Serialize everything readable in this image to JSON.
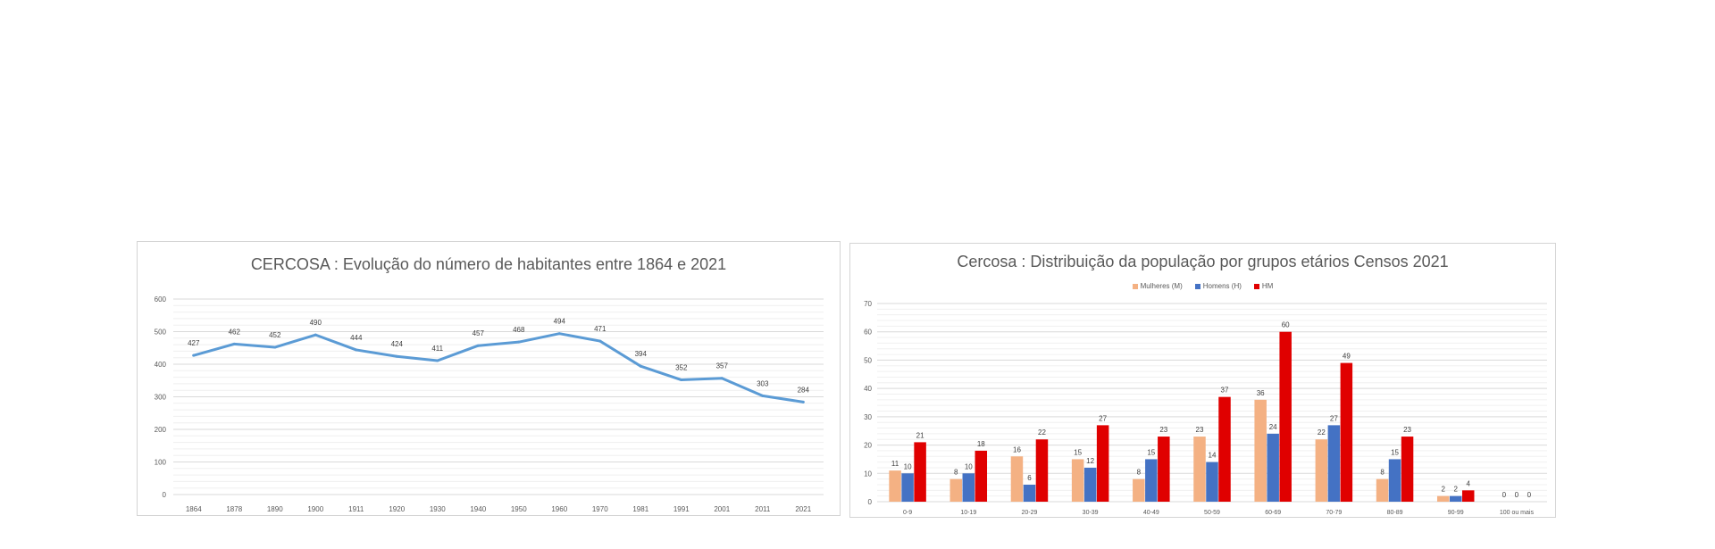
{
  "chart_data": [
    {
      "type": "line",
      "title": "CERCOSA : Evolução do número de habitantes entre 1864 e 2021",
      "categories": [
        "1864",
        "1878",
        "1890",
        "1900",
        "1911",
        "1920",
        "1930",
        "1940",
        "1950",
        "1960",
        "1970",
        "1981",
        "1991",
        "2001",
        "2011",
        "2021"
      ],
      "values": [
        427,
        462,
        452,
        490,
        444,
        424,
        411,
        457,
        468,
        494,
        471,
        394,
        352,
        357,
        303,
        284
      ],
      "ylim": [
        0,
        600
      ],
      "yticks": [
        "0",
        "100",
        "200",
        "300",
        "400",
        "500",
        "600"
      ],
      "grid": true,
      "color": "#5b9bd5"
    },
    {
      "type": "bar",
      "title": "Cercosa : Distribuição da população por grupos etários Censos 2021",
      "categories": [
        "0-9",
        "10-19",
        "20-29",
        "30-39",
        "40-49",
        "50-59",
        "60-69",
        "70-79",
        "80-89",
        "90-99",
        "100 ou mais"
      ],
      "series": [
        {
          "name": "Mulheres (M)",
          "values": [
            11,
            8,
            16,
            15,
            8,
            23,
            36,
            22,
            8,
            2,
            0
          ],
          "color": "#f4b183"
        },
        {
          "name": "Homens (H)",
          "values": [
            10,
            10,
            6,
            12,
            15,
            14,
            24,
            27,
            15,
            2,
            0
          ],
          "color": "#4472c4"
        },
        {
          "name": "HM",
          "values": [
            21,
            18,
            22,
            27,
            23,
            37,
            60,
            49,
            23,
            4,
            0
          ],
          "color": "#e00000"
        }
      ],
      "ylim": [
        0,
        70
      ],
      "yticks": [
        "0",
        "10",
        "20",
        "30",
        "40",
        "50",
        "60",
        "70"
      ],
      "legend_position": "top",
      "grid": true
    }
  ]
}
